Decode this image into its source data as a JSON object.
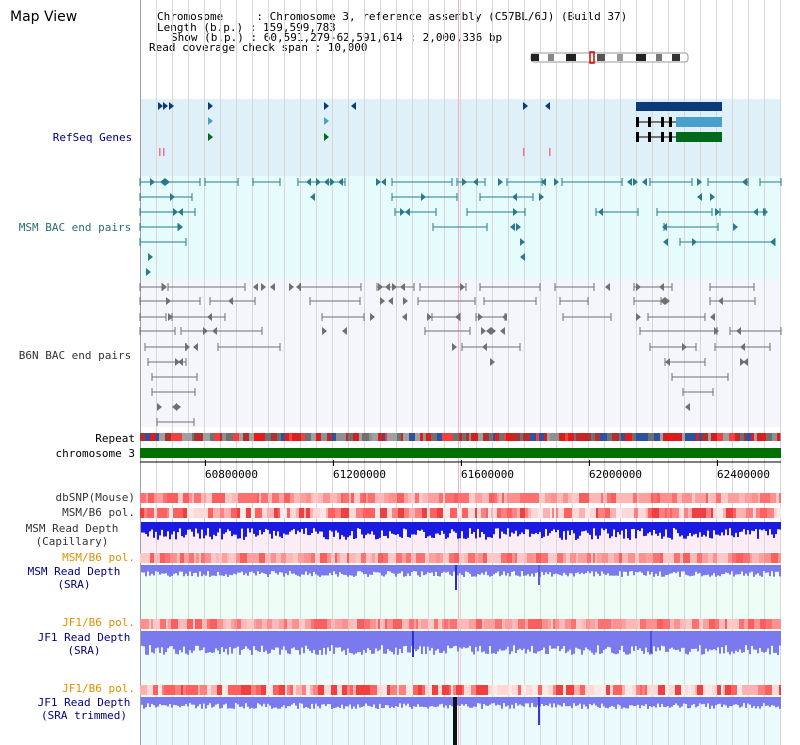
{
  "page": {
    "title": "Map View"
  },
  "info": {
    "chromosome_line": "Chromosome     : Chromosome 3, reference assembly (C57BL/6J) (Build 37)",
    "length_line": "Length (b.p.) : 159,599,783",
    "show_line": "Show (b.p.) : 60,591,279-62,591,614 : 2,000,336 bp",
    "coverage_line": "Read coverage check span : 10,000"
  },
  "tracks": {
    "refseq": "RefSeq Genes",
    "msm_bac": "MSM BAC end pairs",
    "b6n_bac": "B6N BAC end pairs",
    "repeat": "Repeat",
    "chromosome": "chromosome 3",
    "dbsnp": "dbSNP(Mouse)",
    "msm_b6_pol_1": "MSM/B6 pol.",
    "msm_depth_cap_1": "MSM Read Depth",
    "msm_depth_cap_2": "(Capillary)",
    "msm_b6_pol_2": "MSM/B6 pol.",
    "msm_depth_sra_1": "MSM Read Depth",
    "msm_depth_sra_2": "(SRA)",
    "jf1_b6_pol_1": "JF1/B6 pol.",
    "jf1_depth_sra_1": "JF1 Read Depth",
    "jf1_depth_sra_2": "(SRA)",
    "jf1_b6_pol_2": "JF1/B6 pol.",
    "jf1_depth_trim_1": "JF1 Read Depth",
    "jf1_depth_trim_2": "(SRA trimmed)"
  },
  "axis": {
    "ticks": [
      "60800000",
      "61200000",
      "61600000",
      "62000000",
      "62400000"
    ]
  },
  "colors": {
    "refseq_bg": "#dff0f8",
    "msm_bg": "#e6fbfb",
    "b6n_bg": "#f4f6fb",
    "gene_blue": "#0a3a7a",
    "gene_light": "#4aa0c8",
    "gene_green": "#006a1a",
    "msm_bac": "#2a7a8c",
    "b6n_bac": "#707070",
    "chromosome_bar": "#007000",
    "label_navy": "#000080",
    "label_teal": "#2a6a7a",
    "label_orange": "#e09000",
    "depth_blue": "#1a1ae0",
    "depth_light": "#7a7aee"
  }
}
